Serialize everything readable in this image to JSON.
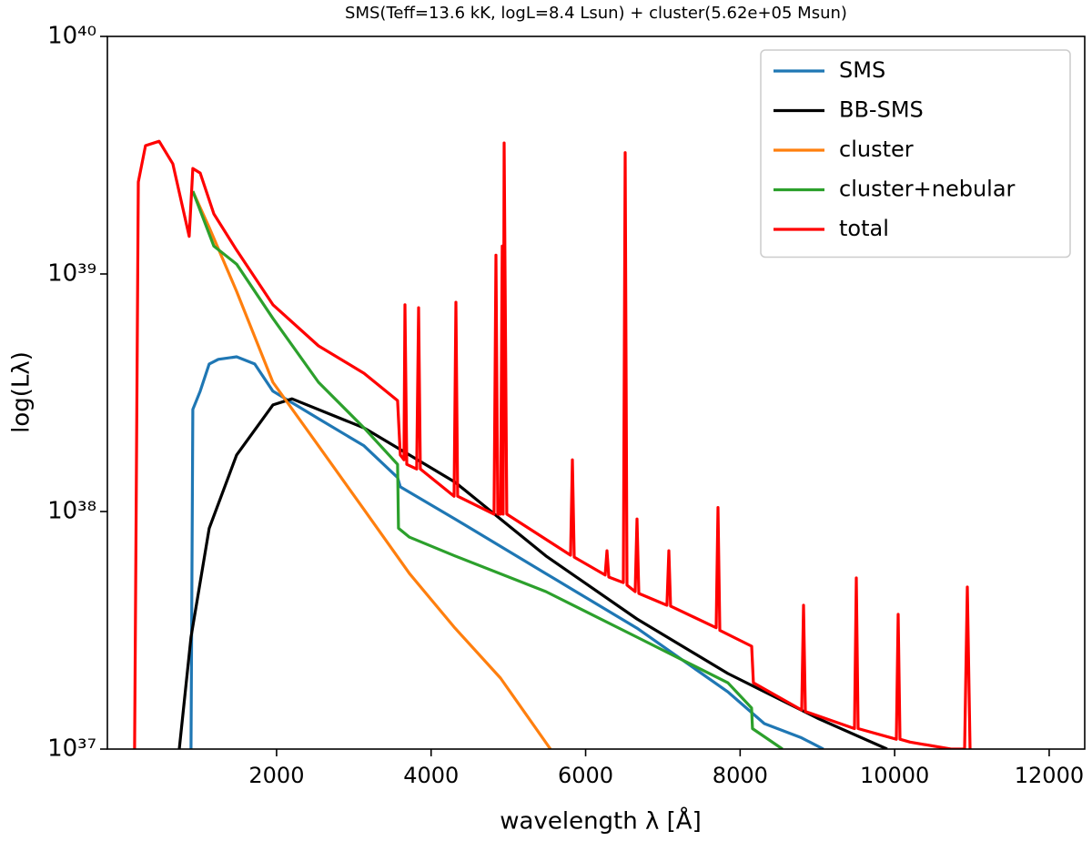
{
  "chart_data": {
    "type": "line",
    "title": "SMS(Teff=13.6 kK, logL=8.4 Lsun) + cluster(5.62e+05 Msun)",
    "xlabel": "wavelength λ [Å]",
    "ylabel": "log(Lλ)",
    "xlim": [
      -190,
      12460
    ],
    "xticks": [
      2000,
      4000,
      6000,
      8000,
      10000,
      12000
    ],
    "ylim": [
      1e+37,
      1e+40
    ],
    "yscale": "log",
    "yticks": [
      {
        "value": 1e+37,
        "label": "10³⁷"
      },
      {
        "value": 1e+38,
        "label": "10³⁸"
      },
      {
        "value": 1e+39,
        "label": "10³⁹"
      },
      {
        "value": 1e+40,
        "label": "10⁴⁰"
      }
    ],
    "legend": "upper right",
    "series": [
      {
        "name": "SMS",
        "color": "#1f77b4",
        "x": [
          893,
          916,
          1011,
          1128,
          1246,
          1482,
          1717,
          1953,
          2542,
          3131,
          3566,
          3602,
          4309,
          5486,
          6664,
          7842,
          8313,
          8784,
          9079
        ],
        "values": [
          1e+37,
          2.69e+38,
          3.21e+38,
          4.18e+38,
          4.37e+38,
          4.48e+38,
          4.18e+38,
          3.21e+38,
          2.46e+38,
          1.89e+38,
          1.39e+38,
          1.27e+38,
          9.3e+37,
          5.48e+37,
          3.23e+37,
          1.74e+37,
          1.28e+37,
          1.12e+37,
          1e+37
        ]
      },
      {
        "name": "BB-SMS",
        "color": "#000000",
        "x": [
          740,
          893,
          1128,
          1482,
          1953,
          2200,
          3131,
          4309,
          5486,
          6664,
          7842,
          9020,
          9903
        ],
        "values": [
          1e+37,
          2.96e+37,
          8.5e+37,
          1.73e+38,
          2.81e+38,
          2.98e+38,
          2.25e+38,
          1.33e+38,
          6.5e+37,
          3.53e+37,
          2.08e+37,
          1.34e+37,
          1e+37
        ]
      },
      {
        "name": "cluster",
        "color": "#ff7f0e",
        "x": [
          916,
          1128,
          1482,
          1953,
          2542,
          3131,
          3720,
          4309,
          4898,
          5545
        ],
        "values": [
          2.23e+39,
          1.57e+39,
          8.45e+38,
          3.5e+38,
          1.89e+38,
          1.02e+38,
          5.48e+37,
          3.23e+37,
          1.99e+37,
          1e+37
        ]
      },
      {
        "name": "cluster+nebular",
        "color": "#2ca02c",
        "x": [
          916,
          1188,
          1482,
          1953,
          2542,
          3131,
          3566,
          3578,
          3720,
          4309,
          5486,
          6664,
          7842,
          8148,
          8160,
          8548
        ],
        "values": [
          2.23e+39,
          1.31e+39,
          1.1e+39,
          6.5e+38,
          3.5e+38,
          2.25e+38,
          1.58e+38,
          8.5e+37,
          7.8e+37,
          6.5e+37,
          4.6e+37,
          2.96e+37,
          1.9e+37,
          1.49e+37,
          1.22e+37,
          1e+37
        ]
      },
      {
        "name": "total",
        "color": "#ff0000",
        "x": [
          162,
          210,
          304,
          480,
          657,
          869,
          916,
          1011,
          1188,
          1482,
          1953,
          2542,
          3131,
          3566,
          3602,
          3649,
          3661,
          3685,
          3814,
          3838,
          3861,
          4297,
          4321,
          4344,
          4815,
          4839,
          4863,
          4898,
          4921,
          4933,
          4945,
          4980,
          5805,
          5829,
          5852,
          6253,
          6276,
          6300,
          6488,
          6512,
          6535,
          6641,
          6665,
          6688,
          7053,
          7077,
          7100,
          7690,
          7713,
          7737,
          8149,
          8172,
          8797,
          8821,
          8844,
          9480,
          9504,
          9527,
          10022,
          10046,
          10069,
          10199,
          10729,
          10905,
          10941,
          10976
        ],
        "values": [
          1e+37,
          2.44e+39,
          3.47e+39,
          3.62e+39,
          2.91e+39,
          1.44e+39,
          2.78e+39,
          2.66e+39,
          1.79e+39,
          1.26e+39,
          7.42e+38,
          4.98e+38,
          3.82e+38,
          2.93e+38,
          1.73e+38,
          1.65e+38,
          7.42e+38,
          1.58e+38,
          1.51e+38,
          7.21e+38,
          1.51e+38,
          1.16e+38,
          7.6e+38,
          1.16e+38,
          9.75e+37,
          1.2e+39,
          9.75e+37,
          9.75e+37,
          1.31e+39,
          9.75e+37,
          3.56e+39,
          9.75e+37,
          6.55e+37,
          1.65e+38,
          6.43e+37,
          5.4e+37,
          6.84e+37,
          5.3e+37,
          5.02e+37,
          3.24e+39,
          4.9e+37,
          4.6e+37,
          9.3e+37,
          4.52e+37,
          4.03e+37,
          6.84e+37,
          4e+37,
          3.24e+37,
          1.04e+38,
          3.16e+37,
          2.71e+37,
          1.9e+37,
          1.46e+37,
          4.03e+37,
          1.44e+37,
          1.22e+37,
          5.25e+37,
          1.22e+37,
          1.1e+37,
          3.69e+37,
          1.1e+37,
          1.07e+37,
          1e+37,
          1e+37,
          4.81e+37,
          1e+37
        ]
      }
    ]
  }
}
